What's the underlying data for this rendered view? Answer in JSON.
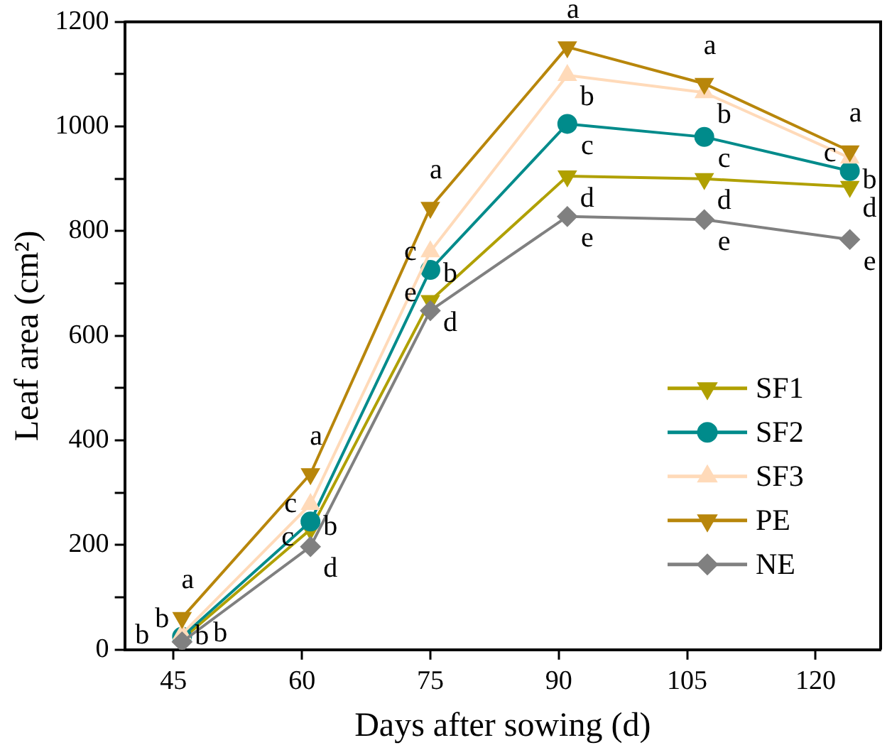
{
  "chart_data": {
    "type": "line",
    "xlabel": "Days after sowing (d)",
    "ylabel": "Leaf area (cm²)",
    "x": [
      46,
      61,
      75,
      91,
      107,
      124
    ],
    "xlim": [
      39.3,
      127.6
    ],
    "xticks": [
      45,
      60,
      75,
      90,
      105,
      120
    ],
    "ylim": [
      0,
      1200
    ],
    "yticks": [
      0,
      {
        "value": 100,
        "label": null
      },
      200,
      {
        "value": 300,
        "label": null
      },
      400,
      {
        "value": 500,
        "label": null
      },
      600,
      {
        "value": 700,
        "label": null
      },
      800,
      {
        "value": 900,
        "label": null
      },
      1000,
      {
        "value": 1100,
        "label": null
      },
      1200
    ],
    "grid": false,
    "legend": "bottom right",
    "line_style": "solid",
    "series": [
      {
        "name": "SF1",
        "color": "#b0a000",
        "marker": "triangle-down",
        "values": [
          20,
          230,
          667,
          905,
          900,
          885
        ],
        "value_labels": [
          "b",
          "c",
          "d",
          "d",
          "d",
          "d"
        ]
      },
      {
        "name": "SF2",
        "color": "#008b8b",
        "marker": "circle",
        "values": [
          25,
          245,
          726,
          1005,
          980,
          915
        ],
        "value_labels": [
          "b",
          "c",
          "c",
          "c",
          "c",
          "c"
        ]
      },
      {
        "name": "SF3",
        "color": "#ffdab9",
        "marker": "triangle",
        "values": [
          30,
          278,
          761,
          1098,
          1065,
          940
        ],
        "value_labels": [
          "b",
          "b",
          "b",
          "b",
          "b",
          "b"
        ]
      },
      {
        "name": "PE",
        "color": "#b8860b",
        "marker": "triangle-down",
        "values": [
          61,
          336,
          845,
          1152,
          1082,
          953
        ],
        "value_labels": [
          "a",
          "a",
          "a",
          "a",
          "a",
          "a"
        ]
      },
      {
        "name": "NE",
        "color": "#808080",
        "marker": "diamond",
        "values": [
          15,
          197,
          648,
          828,
          822,
          784
        ],
        "value_labels": [
          "b",
          "d",
          "e",
          "e",
          "e",
          "e"
        ]
      }
    ]
  }
}
